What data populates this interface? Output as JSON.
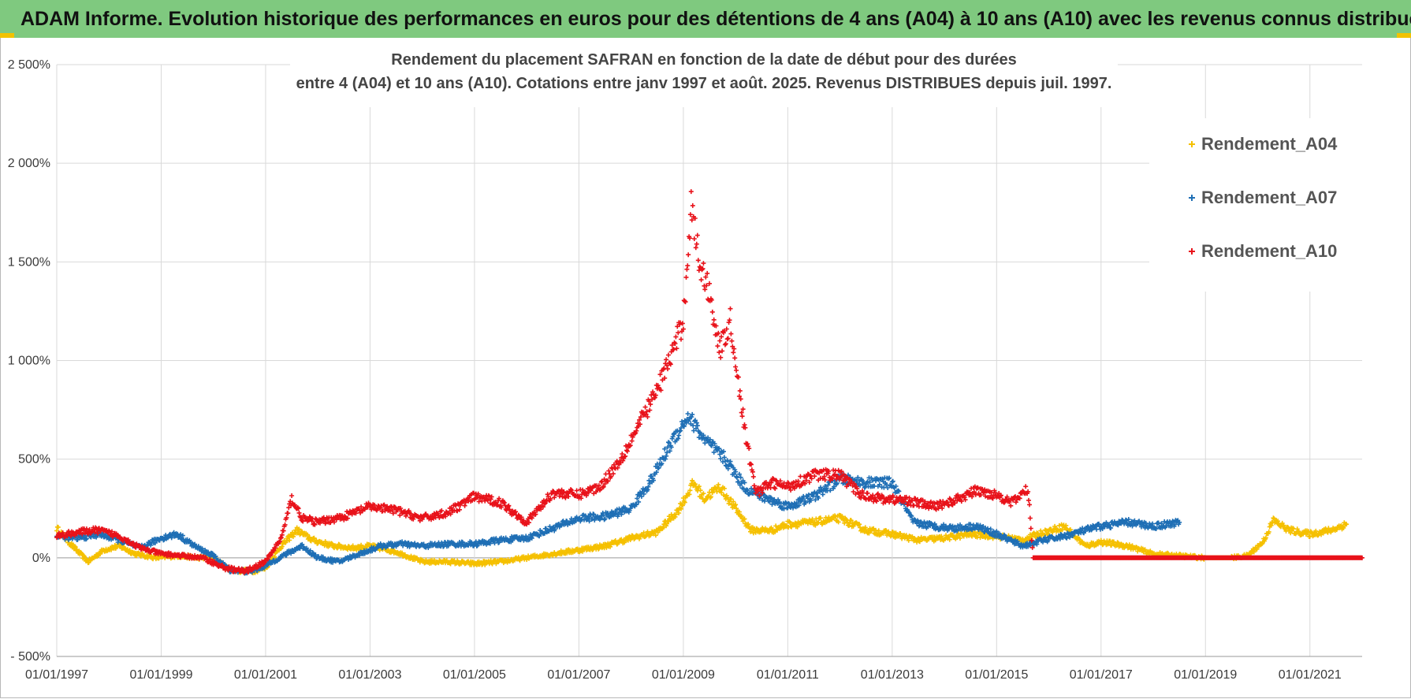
{
  "header": {
    "title": "ADAM Informe. Evolution historique des performances en euros pour des détentions de 4 ans (A04) à 10 ans (A10) avec les revenus connus distribués"
  },
  "colors": {
    "header_bg": "#7fc97f",
    "accent": "#f2c200",
    "grid": "#d9d9d9",
    "A04": "#f5c000",
    "A07": "#1f6fb5",
    "A10": "#e8121a"
  },
  "chart_data": {
    "type": "scatter",
    "title_line1": "Rendement du placement SAFRAN en fonction de la date de début pour des durées",
    "title_line2": "entre 4 (A04) et 10 ans (A10).  Cotations entre janv 1997 et août. 2025. Revenus DISTRIBUES depuis juil. 1997.",
    "xlabel": "",
    "ylabel": "",
    "ylim": [
      -500,
      2500
    ],
    "xlim": [
      1997.0,
      2022.0
    ],
    "y_ticks": [
      -500,
      0,
      500,
      1000,
      1500,
      2000,
      2500
    ],
    "y_tick_labels": [
      "- 500%",
      "0%",
      "500%",
      "1 000%",
      "1 500%",
      "2 000%",
      "2 500%"
    ],
    "x_ticks": [
      1997,
      1999,
      2001,
      2003,
      2005,
      2007,
      2009,
      2011,
      2013,
      2015,
      2017,
      2019,
      2021
    ],
    "x_tick_labels": [
      "01/01/1997",
      "01/01/1999",
      "01/01/2001",
      "01/01/2003",
      "01/01/2005",
      "01/01/2007",
      "01/01/2009",
      "01/01/2011",
      "01/01/2013",
      "01/01/2015",
      "01/01/2017",
      "01/01/2019",
      "01/01/2021"
    ],
    "grid": true,
    "legend_position": "top-right",
    "marker": "+",
    "series": [
      {
        "name": "Rendement_A04",
        "color": "#f5c000",
        "points": [
          [
            1997.0,
            150
          ],
          [
            1997.3,
            60
          ],
          [
            1997.6,
            -20
          ],
          [
            1997.9,
            40
          ],
          [
            1998.2,
            60
          ],
          [
            1998.5,
            20
          ],
          [
            1998.9,
            0
          ],
          [
            1999.3,
            10
          ],
          [
            1999.7,
            0
          ],
          [
            2000.0,
            0
          ],
          [
            2000.3,
            -60
          ],
          [
            2000.7,
            -70
          ],
          [
            2001.0,
            -50
          ],
          [
            2001.3,
            60
          ],
          [
            2001.6,
            140
          ],
          [
            2001.9,
            90
          ],
          [
            2002.3,
            60
          ],
          [
            2002.7,
            50
          ],
          [
            2003.0,
            60
          ],
          [
            2003.5,
            30
          ],
          [
            2004.0,
            -20
          ],
          [
            2004.5,
            -20
          ],
          [
            2005.0,
            -30
          ],
          [
            2005.5,
            -20
          ],
          [
            2006.0,
            0
          ],
          [
            2006.5,
            20
          ],
          [
            2007.0,
            40
          ],
          [
            2007.5,
            60
          ],
          [
            2008.0,
            100
          ],
          [
            2008.5,
            130
          ],
          [
            2008.9,
            240
          ],
          [
            2009.2,
            380
          ],
          [
            2009.4,
            300
          ],
          [
            2009.7,
            360
          ],
          [
            2010.0,
            250
          ],
          [
            2010.3,
            140
          ],
          [
            2010.7,
            140
          ],
          [
            2011.0,
            170
          ],
          [
            2011.5,
            180
          ],
          [
            2012.0,
            200
          ],
          [
            2012.5,
            140
          ],
          [
            2013.0,
            120
          ],
          [
            2013.5,
            90
          ],
          [
            2014.0,
            100
          ],
          [
            2014.5,
            120
          ],
          [
            2015.0,
            110
          ],
          [
            2015.5,
            90
          ],
          [
            2015.8,
            120
          ],
          [
            2016.3,
            160
          ],
          [
            2016.7,
            60
          ],
          [
            2017.0,
            80
          ],
          [
            2017.5,
            60
          ],
          [
            2018.0,
            20
          ],
          [
            2018.5,
            10
          ],
          [
            2019.0,
            0
          ],
          [
            2019.5,
            0
          ],
          [
            2019.8,
            10
          ],
          [
            2020.1,
            80
          ],
          [
            2020.3,
            190
          ],
          [
            2020.6,
            140
          ],
          [
            2021.0,
            120
          ],
          [
            2021.4,
            140
          ],
          [
            2021.7,
            170
          ]
        ]
      },
      {
        "name": "Rendement_A07",
        "color": "#1f6fb5",
        "points": [
          [
            1997.0,
            110
          ],
          [
            1997.4,
            100
          ],
          [
            1997.8,
            120
          ],
          [
            1998.2,
            90
          ],
          [
            1998.6,
            50
          ],
          [
            1999.0,
            100
          ],
          [
            1999.3,
            120
          ],
          [
            1999.7,
            50
          ],
          [
            2000.0,
            10
          ],
          [
            2000.3,
            -60
          ],
          [
            2000.7,
            -70
          ],
          [
            2001.0,
            -40
          ],
          [
            2001.4,
            20
          ],
          [
            2001.7,
            60
          ],
          [
            2002.0,
            0
          ],
          [
            2002.4,
            -20
          ],
          [
            2002.8,
            20
          ],
          [
            2003.2,
            60
          ],
          [
            2003.6,
            70
          ],
          [
            2004.0,
            60
          ],
          [
            2004.5,
            70
          ],
          [
            2005.0,
            70
          ],
          [
            2005.5,
            90
          ],
          [
            2006.0,
            100
          ],
          [
            2006.5,
            150
          ],
          [
            2007.0,
            200
          ],
          [
            2007.5,
            210
          ],
          [
            2008.0,
            250
          ],
          [
            2008.4,
            400
          ],
          [
            2008.8,
            600
          ],
          [
            2009.1,
            720
          ],
          [
            2009.4,
            600
          ],
          [
            2009.8,
            500
          ],
          [
            2010.2,
            350
          ],
          [
            2010.6,
            300
          ],
          [
            2011.0,
            260
          ],
          [
            2011.5,
            310
          ],
          [
            2012.0,
            400
          ],
          [
            2012.5,
            380
          ],
          [
            2013.0,
            380
          ],
          [
            2013.4,
            180
          ],
          [
            2013.8,
            160
          ],
          [
            2014.2,
            150
          ],
          [
            2014.6,
            160
          ],
          [
            2015.0,
            120
          ],
          [
            2015.5,
            60
          ],
          [
            2015.9,
            90
          ],
          [
            2016.3,
            110
          ],
          [
            2016.7,
            140
          ],
          [
            2017.0,
            160
          ],
          [
            2017.5,
            180
          ],
          [
            2018.0,
            160
          ],
          [
            2018.5,
            180
          ]
        ]
      },
      {
        "name": "Rendement_A10",
        "color": "#e8121a",
        "points": [
          [
            1997.0,
            110
          ],
          [
            1997.4,
            130
          ],
          [
            1997.8,
            140
          ],
          [
            1998.2,
            110
          ],
          [
            1998.6,
            50
          ],
          [
            1999.0,
            20
          ],
          [
            1999.4,
            10
          ],
          [
            1999.8,
            0
          ],
          [
            2000.2,
            -50
          ],
          [
            2000.6,
            -70
          ],
          [
            2001.0,
            -20
          ],
          [
            2001.3,
            100
          ],
          [
            2001.5,
            300
          ],
          [
            2001.7,
            200
          ],
          [
            2002.0,
            180
          ],
          [
            2002.5,
            210
          ],
          [
            2003.0,
            260
          ],
          [
            2003.5,
            240
          ],
          [
            2004.0,
            200
          ],
          [
            2004.5,
            230
          ],
          [
            2005.0,
            310
          ],
          [
            2005.5,
            280
          ],
          [
            2006.0,
            180
          ],
          [
            2006.5,
            330
          ],
          [
            2007.0,
            320
          ],
          [
            2007.4,
            360
          ],
          [
            2007.8,
            500
          ],
          [
            2008.2,
            700
          ],
          [
            2008.5,
            850
          ],
          [
            2008.8,
            1050
          ],
          [
            2009.0,
            1200
          ],
          [
            2009.15,
            1800
          ],
          [
            2009.3,
            1500
          ],
          [
            2009.5,
            1350
          ],
          [
            2009.7,
            1050
          ],
          [
            2009.9,
            1200
          ],
          [
            2010.0,
            1000
          ],
          [
            2010.2,
            600
          ],
          [
            2010.4,
            330
          ],
          [
            2010.7,
            380
          ],
          [
            2011.0,
            360
          ],
          [
            2011.5,
            420
          ],
          [
            2012.0,
            420
          ],
          [
            2012.4,
            320
          ],
          [
            2012.8,
            300
          ],
          [
            2013.3,
            290
          ],
          [
            2013.8,
            260
          ],
          [
            2014.2,
            290
          ],
          [
            2014.6,
            340
          ],
          [
            2015.0,
            320
          ],
          [
            2015.3,
            280
          ],
          [
            2015.6,
            350
          ],
          [
            2015.7,
            0
          ],
          [
            2016.5,
            0
          ],
          [
            2017.5,
            0
          ],
          [
            2018.5,
            0
          ],
          [
            2019.5,
            0
          ],
          [
            2020.5,
            0
          ],
          [
            2021.5,
            0
          ],
          [
            2022.0,
            0
          ]
        ]
      }
    ]
  }
}
